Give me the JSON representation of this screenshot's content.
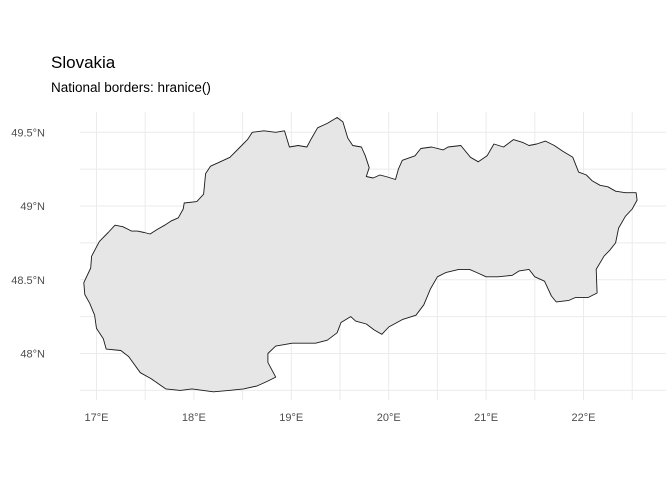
{
  "title": "Slovakia",
  "subtitle": "National borders: hranice()",
  "colors": {
    "land_fill": "#e6e6e6",
    "border": "#1a1a1a",
    "grid": "#ebebeb",
    "background": "#ffffff"
  },
  "chart_data": {
    "type": "map",
    "region": "Slovakia",
    "x_ticks": [
      {
        "value": 17,
        "label": "17°E"
      },
      {
        "value": 18,
        "label": "18°E"
      },
      {
        "value": 19,
        "label": "19°E"
      },
      {
        "value": 20,
        "label": "20°E"
      },
      {
        "value": 21,
        "label": "21°E"
      },
      {
        "value": 22,
        "label": "22°E"
      }
    ],
    "y_ticks": [
      {
        "value": 49.5,
        "label": "49.5°N"
      },
      {
        "value": 49.0,
        "label": "49°N"
      },
      {
        "value": 48.5,
        "label": "48.5°N"
      },
      {
        "value": 48.0,
        "label": "48°N"
      }
    ],
    "xlim": [
      16.85,
      22.65
    ],
    "ylim": [
      47.72,
      49.62
    ],
    "grid": true,
    "border_outline": [
      [
        16.87,
        48.48
      ],
      [
        16.94,
        48.58
      ],
      [
        16.95,
        48.66
      ],
      [
        17.03,
        48.76
      ],
      [
        17.12,
        48.82
      ],
      [
        17.19,
        48.87
      ],
      [
        17.27,
        48.86
      ],
      [
        17.36,
        48.83
      ],
      [
        17.42,
        48.83
      ],
      [
        17.49,
        48.82
      ],
      [
        17.55,
        48.81
      ],
      [
        17.62,
        48.84
      ],
      [
        17.7,
        48.87
      ],
      [
        17.77,
        48.9
      ],
      [
        17.84,
        48.92
      ],
      [
        17.89,
        48.98
      ],
      [
        17.9,
        49.02
      ],
      [
        18.03,
        49.03
      ],
      [
        18.1,
        49.08
      ],
      [
        18.12,
        49.22
      ],
      [
        18.17,
        49.27
      ],
      [
        18.27,
        49.3
      ],
      [
        18.37,
        49.33
      ],
      [
        18.46,
        49.39
      ],
      [
        18.55,
        49.45
      ],
      [
        18.6,
        49.5
      ],
      [
        18.72,
        49.51
      ],
      [
        18.84,
        49.5
      ],
      [
        18.93,
        49.51
      ],
      [
        18.98,
        49.4
      ],
      [
        19.07,
        49.41
      ],
      [
        19.16,
        49.4
      ],
      [
        19.2,
        49.45
      ],
      [
        19.27,
        49.53
      ],
      [
        19.37,
        49.56
      ],
      [
        19.47,
        49.6
      ],
      [
        19.53,
        49.57
      ],
      [
        19.58,
        49.46
      ],
      [
        19.63,
        49.41
      ],
      [
        19.72,
        49.4
      ],
      [
        19.76,
        49.34
      ],
      [
        19.8,
        49.26
      ],
      [
        19.77,
        49.2
      ],
      [
        19.84,
        49.19
      ],
      [
        19.91,
        49.21
      ],
      [
        19.97,
        49.2
      ],
      [
        20.07,
        49.18
      ],
      [
        20.1,
        49.25
      ],
      [
        20.14,
        49.31
      ],
      [
        20.27,
        49.34
      ],
      [
        20.33,
        49.39
      ],
      [
        20.44,
        49.4
      ],
      [
        20.56,
        49.38
      ],
      [
        20.61,
        49.4
      ],
      [
        20.74,
        49.41
      ],
      [
        20.84,
        49.33
      ],
      [
        20.92,
        49.3
      ],
      [
        21.01,
        49.34
      ],
      [
        21.08,
        49.42
      ],
      [
        21.18,
        49.4
      ],
      [
        21.28,
        49.45
      ],
      [
        21.38,
        49.43
      ],
      [
        21.44,
        49.41
      ],
      [
        21.52,
        49.42
      ],
      [
        21.61,
        49.44
      ],
      [
        21.7,
        49.41
      ],
      [
        21.79,
        49.37
      ],
      [
        21.89,
        49.33
      ],
      [
        21.95,
        49.23
      ],
      [
        22.03,
        49.21
      ],
      [
        22.09,
        49.17
      ],
      [
        22.17,
        49.14
      ],
      [
        22.25,
        49.13
      ],
      [
        22.33,
        49.1
      ],
      [
        22.43,
        49.09
      ],
      [
        22.54,
        49.09
      ],
      [
        22.55,
        49.04
      ],
      [
        22.5,
        48.98
      ],
      [
        22.43,
        48.93
      ],
      [
        22.36,
        48.85
      ],
      [
        22.33,
        48.75
      ],
      [
        22.27,
        48.7
      ],
      [
        22.21,
        48.66
      ],
      [
        22.13,
        48.57
      ],
      [
        22.14,
        48.41
      ],
      [
        22.05,
        48.38
      ],
      [
        21.92,
        48.38
      ],
      [
        21.85,
        48.36
      ],
      [
        21.72,
        48.35
      ],
      [
        21.67,
        48.39
      ],
      [
        21.6,
        48.49
      ],
      [
        21.5,
        48.52
      ],
      [
        21.44,
        48.57
      ],
      [
        21.34,
        48.56
      ],
      [
        21.27,
        48.53
      ],
      [
        21.12,
        48.52
      ],
      [
        21.0,
        48.52
      ],
      [
        20.9,
        48.55
      ],
      [
        20.83,
        48.57
      ],
      [
        20.72,
        48.57
      ],
      [
        20.59,
        48.55
      ],
      [
        20.5,
        48.52
      ],
      [
        20.43,
        48.44
      ],
      [
        20.36,
        48.33
      ],
      [
        20.28,
        48.26
      ],
      [
        20.14,
        48.23
      ],
      [
        20.0,
        48.18
      ],
      [
        19.93,
        48.13
      ],
      [
        19.85,
        48.16
      ],
      [
        19.77,
        48.2
      ],
      [
        19.66,
        48.22
      ],
      [
        19.61,
        48.25
      ],
      [
        19.51,
        48.21
      ],
      [
        19.47,
        48.14
      ],
      [
        19.37,
        48.09
      ],
      [
        19.25,
        48.07
      ],
      [
        19.12,
        48.07
      ],
      [
        19.01,
        48.07
      ],
      [
        18.93,
        48.06
      ],
      [
        18.84,
        48.05
      ],
      [
        18.76,
        48.0
      ],
      [
        18.76,
        47.94
      ],
      [
        18.84,
        47.84
      ],
      [
        18.75,
        47.81
      ],
      [
        18.65,
        47.78
      ],
      [
        18.51,
        47.76
      ],
      [
        18.36,
        47.75
      ],
      [
        18.2,
        47.74
      ],
      [
        17.98,
        47.76
      ],
      [
        17.86,
        47.75
      ],
      [
        17.71,
        47.76
      ],
      [
        17.56,
        47.83
      ],
      [
        17.45,
        47.87
      ],
      [
        17.33,
        47.98
      ],
      [
        17.25,
        48.02
      ],
      [
        17.1,
        48.03
      ],
      [
        17.07,
        48.1
      ],
      [
        17.0,
        48.17
      ],
      [
        16.98,
        48.26
      ],
      [
        16.93,
        48.34
      ],
      [
        16.88,
        48.4
      ]
    ]
  }
}
